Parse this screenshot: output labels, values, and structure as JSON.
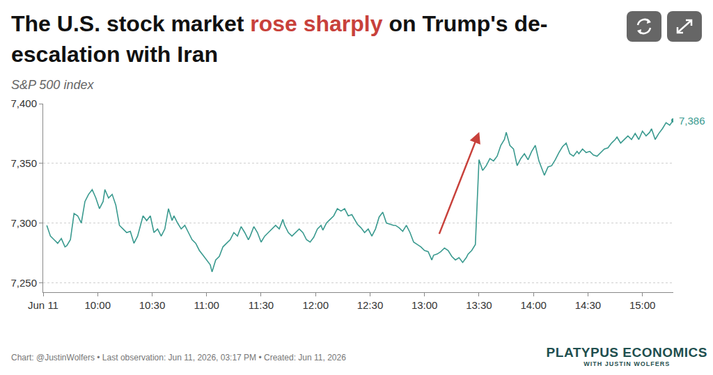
{
  "chart_data": {
    "type": "line",
    "title": "The U.S. stock market rose sharply on Trump's de-escalation with Iran",
    "title_highlight": "rose sharply",
    "subtitle": "S&P 500 index",
    "color": "#3a9a8f",
    "grid": true,
    "x": [
      572,
      574,
      576,
      578,
      580,
      582,
      583,
      585,
      587,
      589,
      591,
      593,
      595,
      597,
      599,
      601,
      603,
      604,
      606,
      608,
      610,
      612,
      614,
      616,
      618,
      620,
      622,
      623,
      625,
      627,
      629,
      631,
      633,
      635,
      637,
      639,
      641,
      642,
      644,
      646,
      648,
      650,
      652,
      654,
      656,
      658,
      660,
      662,
      663,
      665,
      667,
      669,
      671,
      673,
      675,
      677,
      679,
      681,
      683,
      684,
      686,
      688,
      690,
      692,
      694,
      696,
      698,
      700,
      702,
      703,
      705,
      707,
      709,
      711,
      713,
      715,
      717,
      719,
      721,
      723,
      724,
      726,
      728,
      730,
      732,
      734,
      736,
      738,
      740,
      742,
      743,
      745,
      747,
      749,
      751,
      753,
      755,
      757,
      759,
      761,
      763,
      764,
      766,
      768,
      770,
      772,
      774,
      776,
      778,
      780,
      782,
      784,
      785,
      787,
      789,
      791,
      793,
      795,
      797,
      799,
      801,
      803,
      804,
      806,
      808,
      810,
      812,
      814,
      816,
      818,
      820,
      822,
      824,
      825,
      827,
      829,
      831,
      833,
      835,
      837,
      839,
      841,
      843,
      845,
      846,
      848,
      850,
      852,
      854,
      856,
      858,
      860,
      862,
      864,
      865,
      867,
      869,
      871,
      873,
      875,
      877,
      879,
      881,
      883,
      885,
      886,
      888,
      890,
      892,
      894,
      896,
      898,
      900,
      902,
      904,
      905,
      907,
      909,
      911,
      913,
      915,
      917
    ],
    "values": [
      7298,
      7289,
      7286,
      7283,
      7287,
      7280,
      7281,
      7286,
      7308,
      7306,
      7300,
      7318,
      7324,
      7328,
      7321,
      7312,
      7318,
      7328,
      7321,
      7324,
      7315,
      7298,
      7295,
      7292,
      7293,
      7283,
      7289,
      7295,
      7306,
      7302,
      7306,
      7292,
      7295,
      7289,
      7295,
      7312,
      7302,
      7306,
      7300,
      7295,
      7298,
      7292,
      7286,
      7283,
      7277,
      7273,
      7269,
      7265,
      7259,
      7269,
      7272,
      7280,
      7283,
      7286,
      7292,
      7289,
      7297,
      7292,
      7286,
      7289,
      7297,
      7292,
      7284,
      7289,
      7292,
      7295,
      7298,
      7295,
      7303,
      7298,
      7292,
      7289,
      7292,
      7295,
      7292,
      7286,
      7284,
      7288,
      7295,
      7298,
      7294,
      7300,
      7303,
      7306,
      7312,
      7310,
      7312,
      7306,
      7307,
      7302,
      7299,
      7296,
      7292,
      7295,
      7289,
      7295,
      7305,
      7309,
      7300,
      7299,
      7298,
      7298,
      7296,
      7293,
      7298,
      7292,
      7284,
      7282,
      7280,
      7277,
      7276,
      7269,
      7273,
      7274,
      7276,
      7279,
      7277,
      7272,
      7269,
      7271,
      7267,
      7271,
      7274,
      7277,
      7282,
      7353,
      7344,
      7348,
      7354,
      7352,
      7356,
      7365,
      7370,
      7376,
      7365,
      7362,
      7348,
      7354,
      7358,
      7353,
      7360,
      7365,
      7352,
      7344,
      7340,
      7347,
      7348,
      7353,
      7359,
      7364,
      7367,
      7358,
      7356,
      7360,
      7358,
      7362,
      7359,
      7360,
      7357,
      7356,
      7359,
      7362,
      7363,
      7367,
      7370,
      7372,
      7367,
      7370,
      7373,
      7370,
      7375,
      7370,
      7377,
      7373,
      7376,
      7379,
      7370,
      7375,
      7379,
      7384,
      7382,
      7386
    ],
    "xlim": [
      570,
      917
    ],
    "xticks": [
      {
        "value": 570,
        "label": "Jun 11"
      },
      {
        "value": 600,
        "label": "10:00"
      },
      {
        "value": 630,
        "label": "10:30"
      },
      {
        "value": 660,
        "label": "11:00"
      },
      {
        "value": 690,
        "label": "11:30"
      },
      {
        "value": 720,
        "label": "12:00"
      },
      {
        "value": 750,
        "label": "12:30"
      },
      {
        "value": 780,
        "label": "13:00"
      },
      {
        "value": 810,
        "label": "13:30"
      },
      {
        "value": 840,
        "label": "14:00"
      },
      {
        "value": 870,
        "label": "14:30"
      },
      {
        "value": 900,
        "label": "15:00"
      }
    ],
    "ylim": [
      7242,
      7400
    ],
    "yticks": [
      {
        "value": 7250,
        "label": "7,250"
      },
      {
        "value": 7300,
        "label": "7,300"
      },
      {
        "value": 7350,
        "label": "7,350"
      },
      {
        "value": 7400,
        "label": "7,400"
      }
    ],
    "annotations": [
      {
        "text": "7,386"
      }
    ],
    "footer": "Chart: @JustinWolfers • Last observation: Jun 11, 2026, 03:17 PM • Created: Jun 11, 2026",
    "branding": {
      "name": "PLATYPUS ECONOMICS",
      "tagline": "WITH JUSTIN WOLFERS"
    }
  }
}
